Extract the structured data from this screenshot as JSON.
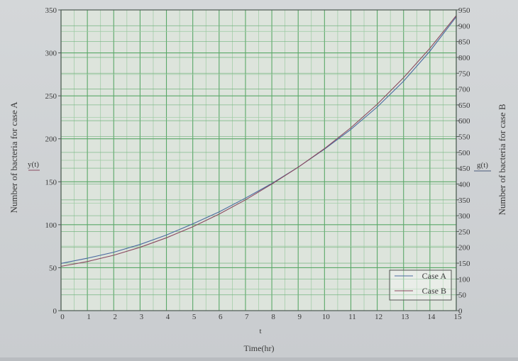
{
  "chart_data": {
    "type": "line",
    "xlabel": "Time(hr)",
    "x_axis_symbol": "t",
    "ylabel_left": "Number of bacteria for case A",
    "ylabel_left_symbol": "y(t)",
    "ylabel_right": "Number of bacteria for case B",
    "ylabel_right_symbol": "g(t)",
    "xlim": [
      0,
      15
    ],
    "ylim_left": [
      0,
      350
    ],
    "ylim_right": [
      0,
      950
    ],
    "x_ticks": [
      0,
      1,
      2,
      3,
      4,
      5,
      6,
      7,
      8,
      9,
      10,
      11,
      12,
      13,
      14,
      15
    ],
    "y_ticks_left": [
      0,
      50,
      100,
      150,
      200,
      250,
      300,
      350
    ],
    "y_ticks_right": [
      0,
      50,
      100,
      150,
      200,
      250,
      300,
      350,
      400,
      450,
      500,
      550,
      600,
      650,
      700,
      750,
      800,
      850,
      900,
      950
    ],
    "grid": true,
    "legend_position": "bottom-right",
    "series": [
      {
        "name": "Case A",
        "axis": "left",
        "x": [
          0,
          1,
          2,
          3,
          4,
          5,
          6,
          7,
          8,
          9,
          10,
          11,
          12,
          13,
          14,
          15
        ],
        "values": [
          55,
          61,
          68,
          77,
          88,
          101,
          115,
          131,
          148,
          167,
          188,
          211,
          237,
          267,
          302,
          342
        ]
      },
      {
        "name": "Case B",
        "axis": "right",
        "x": [
          0,
          1,
          2,
          3,
          4,
          5,
          6,
          7,
          8,
          9,
          10,
          11,
          12,
          13,
          14,
          15
        ],
        "values": [
          140,
          155,
          175,
          200,
          230,
          265,
          305,
          350,
          400,
          453,
          512,
          578,
          652,
          736,
          829,
          932
        ]
      }
    ]
  }
}
